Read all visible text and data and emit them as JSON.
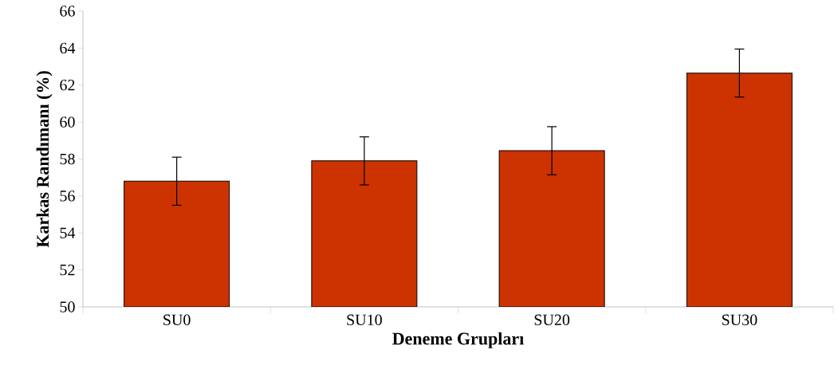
{
  "chart_data": {
    "type": "bar",
    "xlabel": "Deneme Grupları",
    "ylabel": "Karkas Randımanı (%)",
    "categories": [
      "SU0",
      "SU10",
      "SU20",
      "SU30"
    ],
    "values": [
      56.8,
      57.9,
      58.45,
      62.65
    ],
    "errors": [
      1.3,
      1.3,
      1.3,
      1.3
    ],
    "color": "#cc3300",
    "ylim": [
      50,
      66
    ],
    "yticks": [
      50,
      52,
      54,
      56,
      58,
      60,
      62,
      64,
      66
    ],
    "grid": false
  }
}
